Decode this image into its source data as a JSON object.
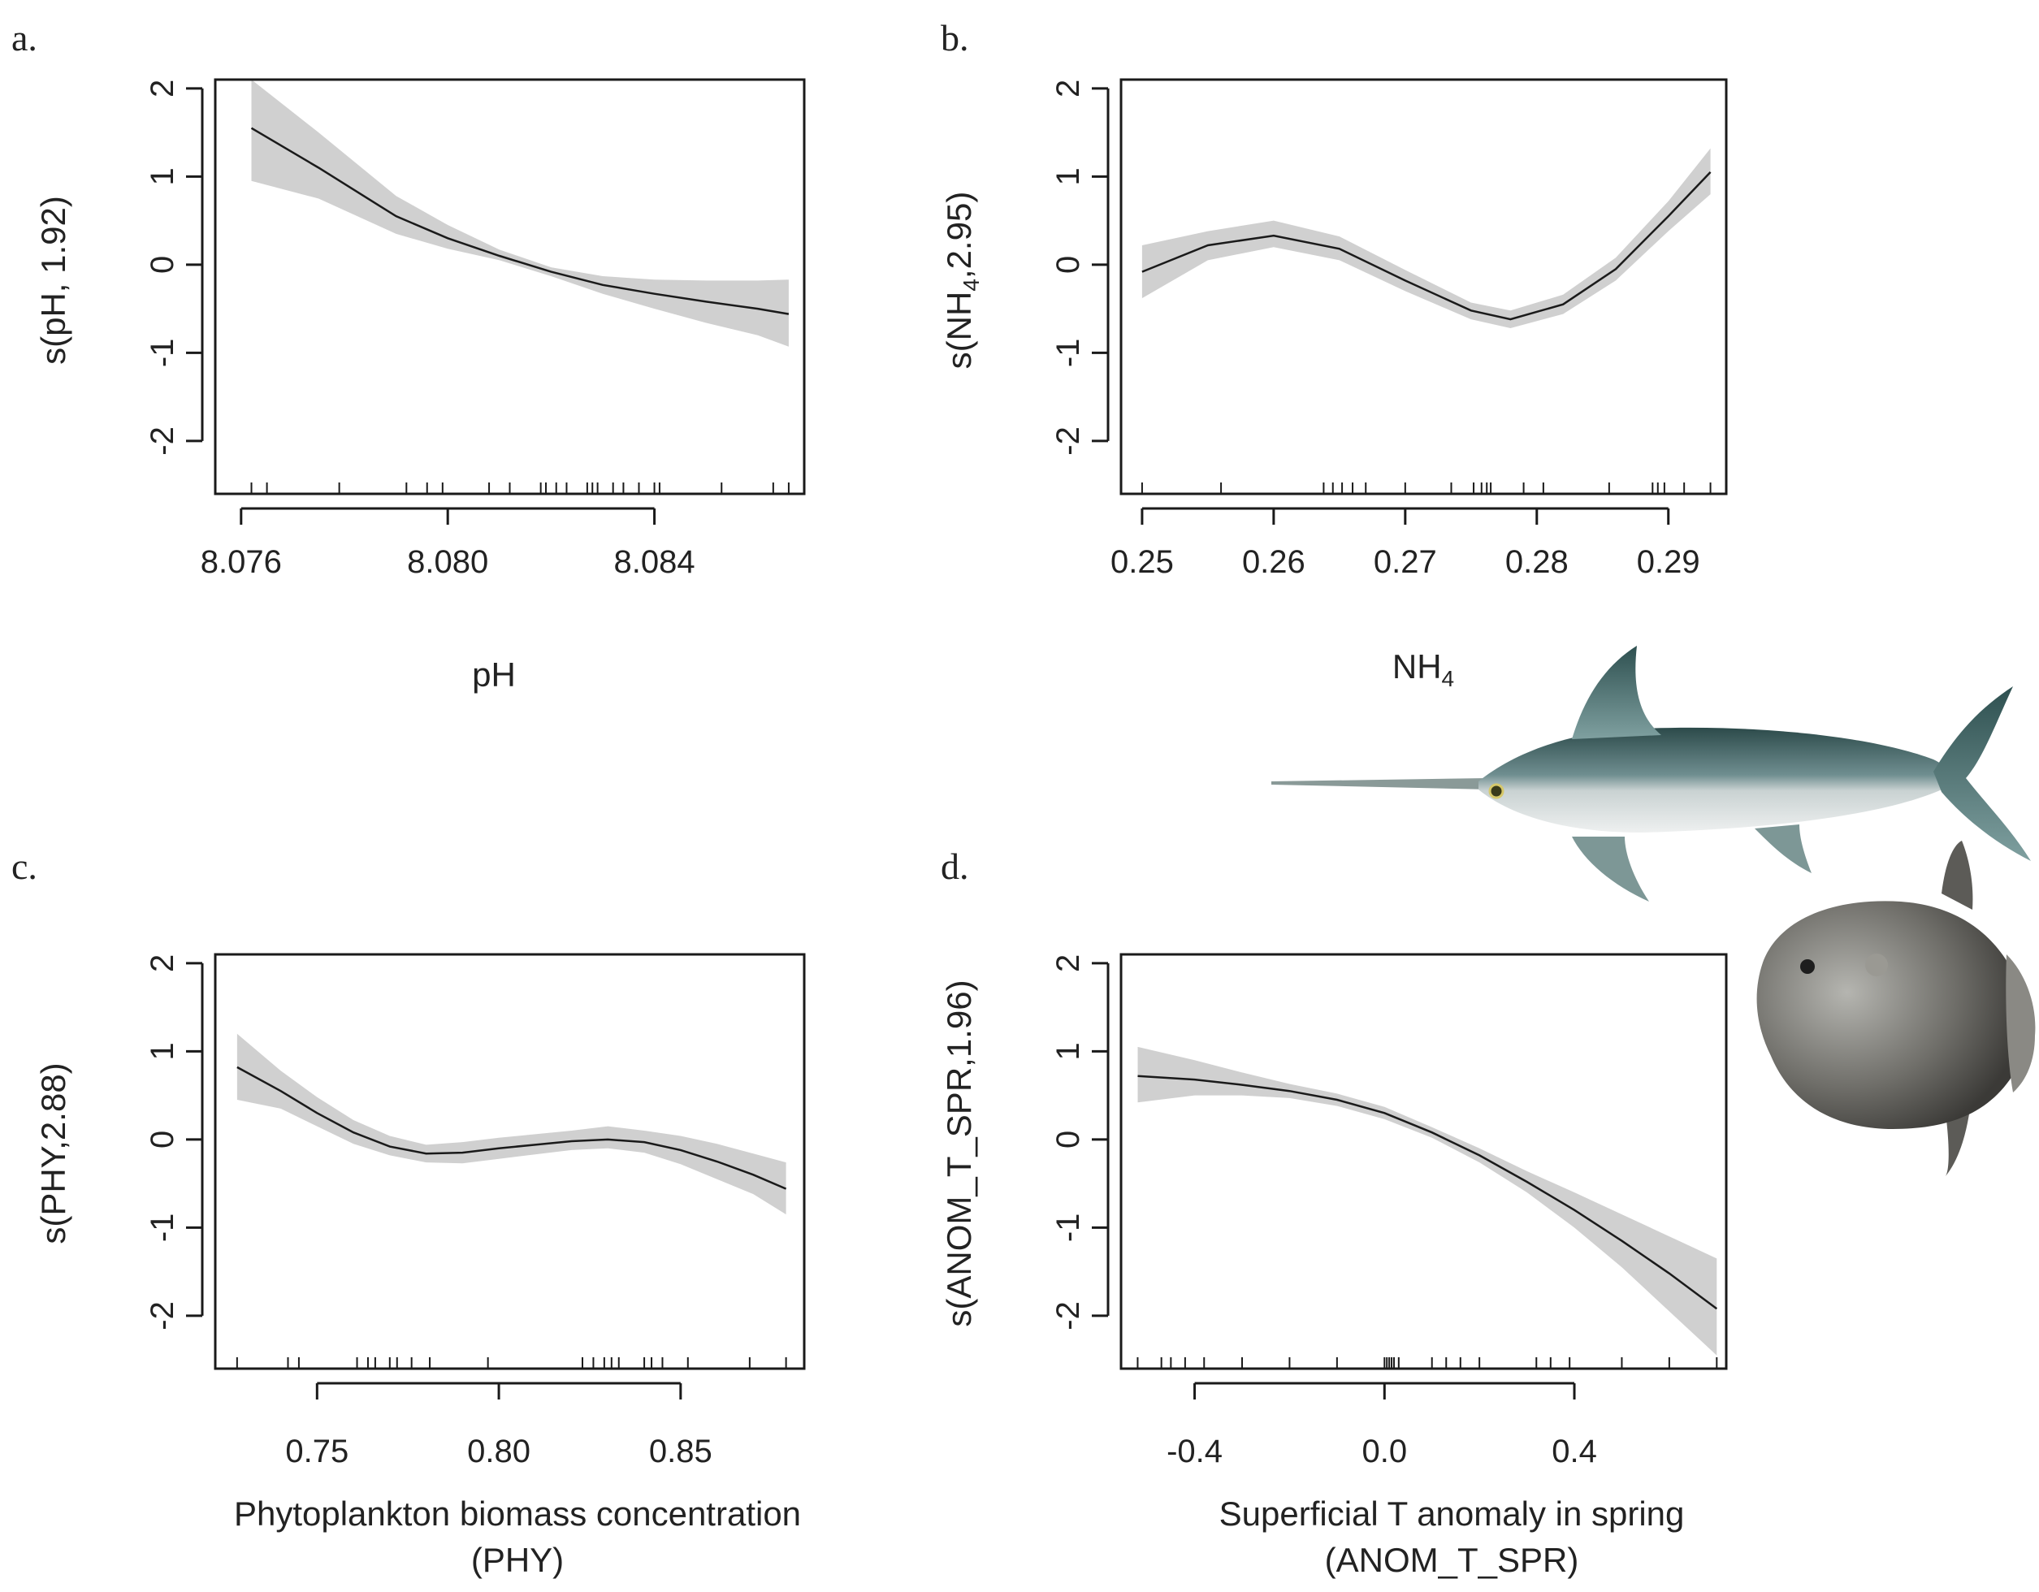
{
  "figure": {
    "colors": {
      "line": "#1a1a1a",
      "band": "#d0d0d0",
      "axis": "#1a1a1a",
      "text": "#222222"
    }
  },
  "chart_data": [
    {
      "type": "line",
      "panel_label": "a.",
      "xlabel": "pH",
      "ylabel": "s(pH, 1.92)",
      "xlim": [
        8.0755,
        8.0869
      ],
      "ylim": [
        -2.6,
        2.1
      ],
      "xticks": [
        8.076,
        8.08,
        8.084
      ],
      "xtick_labels": [
        "8.076",
        "8.080",
        "8.084"
      ],
      "yticks": [
        -2,
        -1,
        0,
        1,
        2
      ],
      "ytick_labels": [
        "-2",
        "-1",
        "0",
        "1",
        "2"
      ],
      "series": [
        {
          "name": "smooth",
          "x": [
            8.0762,
            8.0775,
            8.079,
            8.08,
            8.081,
            8.082,
            8.083,
            8.084,
            8.085,
            8.086,
            8.0866
          ],
          "y": [
            1.55,
            1.1,
            0.55,
            0.3,
            0.1,
            -0.08,
            -0.23,
            -0.33,
            -0.42,
            -0.5,
            -0.56
          ],
          "lower": [
            0.95,
            0.75,
            0.35,
            0.18,
            0.05,
            -0.13,
            -0.33,
            -0.5,
            -0.66,
            -0.8,
            -0.93
          ],
          "upper": [
            2.1,
            1.5,
            0.78,
            0.45,
            0.17,
            -0.03,
            -0.13,
            -0.17,
            -0.18,
            -0.18,
            -0.17
          ]
        }
      ],
      "rug": [
        8.0762,
        8.0765,
        8.0779,
        8.0792,
        8.0796,
        8.0799,
        8.0808,
        8.0812,
        8.0818,
        8.0819,
        8.0821,
        8.0823,
        8.0827,
        8.0828,
        8.0829,
        8.0832,
        8.0834,
        8.0837,
        8.084,
        8.0841,
        8.0853,
        8.0863,
        8.0866
      ]
    },
    {
      "type": "line",
      "panel_label": "b.",
      "xlabel": "NH4",
      "xlabel_sub": "4",
      "xlabel_base": "NH",
      "ylabel": "s(NH4,2.95)",
      "ylabel_prefix": "s(NH",
      "ylabel_sub": "4",
      "ylabel_suffix": ",2.95)",
      "xlim": [
        0.2484,
        0.2944
      ],
      "ylim": [
        -2.6,
        2.1
      ],
      "xticks": [
        0.25,
        0.26,
        0.27,
        0.28,
        0.29
      ],
      "xtick_labels": [
        "0.25",
        "0.26",
        "0.27",
        "0.28",
        "0.29"
      ],
      "yticks": [
        -2,
        -1,
        0,
        1,
        2
      ],
      "ytick_labels": [
        "-2",
        "-1",
        "0",
        "1",
        "2"
      ],
      "series": [
        {
          "name": "smooth",
          "x": [
            0.25,
            0.255,
            0.26,
            0.265,
            0.27,
            0.275,
            0.278,
            0.282,
            0.286,
            0.29,
            0.2932
          ],
          "y": [
            -0.08,
            0.22,
            0.33,
            0.18,
            -0.18,
            -0.52,
            -0.62,
            -0.45,
            -0.05,
            0.55,
            1.05
          ],
          "lower": [
            -0.38,
            0.05,
            0.2,
            0.05,
            -0.3,
            -0.62,
            -0.72,
            -0.56,
            -0.18,
            0.38,
            0.8
          ],
          "upper": [
            0.22,
            0.38,
            0.5,
            0.32,
            -0.06,
            -0.43,
            -0.52,
            -0.34,
            0.08,
            0.72,
            1.32
          ]
        }
      ],
      "rug": [
        0.25,
        0.256,
        0.2638,
        0.2645,
        0.2652,
        0.266,
        0.267,
        0.27,
        0.2735,
        0.2752,
        0.2758,
        0.2762,
        0.2765,
        0.279,
        0.2805,
        0.2855,
        0.2888,
        0.2892,
        0.2897,
        0.2912,
        0.2932
      ]
    },
    {
      "type": "line",
      "panel_label": "c.",
      "xlabel": "Phytoplankton biomass concentration",
      "xlabel_line2": "(PHY)",
      "ylabel": "s(PHY,2.88)",
      "xlim": [
        0.722,
        0.884
      ],
      "ylim": [
        -2.6,
        2.1
      ],
      "xticks": [
        0.75,
        0.8,
        0.85
      ],
      "xtick_labels": [
        "0.75",
        "0.80",
        "0.85"
      ],
      "yticks": [
        -2,
        -1,
        0,
        1,
        2
      ],
      "ytick_labels": [
        "-2",
        "-1",
        "0",
        "1",
        "2"
      ],
      "series": [
        {
          "name": "smooth",
          "x": [
            0.728,
            0.74,
            0.75,
            0.76,
            0.77,
            0.78,
            0.79,
            0.8,
            0.81,
            0.82,
            0.83,
            0.84,
            0.85,
            0.86,
            0.87,
            0.879
          ],
          "y": [
            0.82,
            0.55,
            0.3,
            0.08,
            -0.08,
            -0.16,
            -0.15,
            -0.1,
            -0.06,
            -0.02,
            0.0,
            -0.03,
            -0.12,
            -0.25,
            -0.4,
            -0.56
          ],
          "lower": [
            0.45,
            0.35,
            0.15,
            -0.05,
            -0.18,
            -0.26,
            -0.27,
            -0.22,
            -0.17,
            -0.12,
            -0.1,
            -0.15,
            -0.28,
            -0.45,
            -0.62,
            -0.85
          ],
          "upper": [
            1.2,
            0.78,
            0.48,
            0.22,
            0.04,
            -0.06,
            -0.03,
            0.02,
            0.06,
            0.1,
            0.15,
            0.1,
            0.04,
            -0.05,
            -0.16,
            -0.26
          ]
        }
      ],
      "rug": [
        0.728,
        0.742,
        0.745,
        0.761,
        0.764,
        0.766,
        0.77,
        0.772,
        0.776,
        0.781,
        0.797,
        0.823,
        0.826,
        0.829,
        0.831,
        0.833,
        0.84,
        0.842,
        0.845,
        0.852,
        0.869,
        0.879
      ]
    },
    {
      "type": "line",
      "panel_label": "d.",
      "xlabel": "Superficial T anomaly in spring",
      "xlabel_line2": "(ANOM_T_SPR)",
      "ylabel": "s(ANOM_T_SPR,1.96)",
      "xlim": [
        -0.555,
        0.72
      ],
      "ylim": [
        -2.6,
        2.1
      ],
      "xticks": [
        -0.4,
        0.0,
        0.4
      ],
      "xtick_labels": [
        "-0.4",
        "0.0",
        "0.4"
      ],
      "yticks": [
        -2,
        -1,
        0,
        1,
        2
      ],
      "ytick_labels": [
        "-2",
        "-1",
        "0",
        "1",
        "2"
      ],
      "series": [
        {
          "name": "smooth",
          "x": [
            -0.52,
            -0.4,
            -0.3,
            -0.2,
            -0.1,
            0.0,
            0.1,
            0.2,
            0.3,
            0.4,
            0.5,
            0.6,
            0.7
          ],
          "y": [
            0.72,
            0.68,
            0.62,
            0.55,
            0.45,
            0.3,
            0.08,
            -0.18,
            -0.48,
            -0.8,
            -1.15,
            -1.52,
            -1.92
          ],
          "lower": [
            0.42,
            0.5,
            0.5,
            0.47,
            0.38,
            0.23,
            0.02,
            -0.26,
            -0.6,
            -1.0,
            -1.45,
            -1.95,
            -2.45
          ],
          "upper": [
            1.05,
            0.9,
            0.76,
            0.63,
            0.52,
            0.37,
            0.14,
            -0.1,
            -0.36,
            -0.6,
            -0.85,
            -1.1,
            -1.35
          ]
        }
      ],
      "rug": [
        -0.52,
        -0.47,
        -0.45,
        -0.42,
        -0.38,
        -0.3,
        -0.2,
        -0.1,
        0.0,
        0.005,
        0.01,
        0.015,
        0.02,
        0.03,
        0.1,
        0.13,
        0.16,
        0.2,
        0.32,
        0.35,
        0.39,
        0.5,
        0.6,
        0.7
      ]
    }
  ]
}
